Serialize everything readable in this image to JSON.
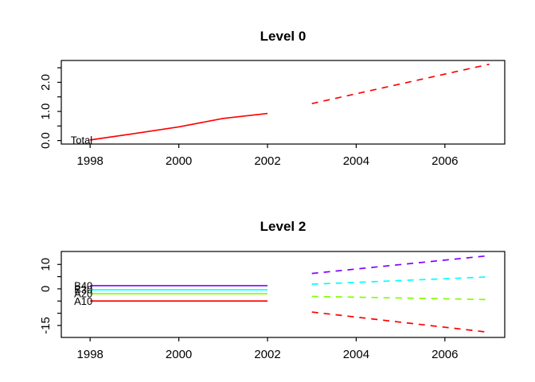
{
  "chart_data": [
    {
      "type": "line",
      "title": "Level 0",
      "xlim": [
        1997.35,
        2007.35
      ],
      "ylim": [
        -0.12,
        2.75
      ],
      "x_ticks": [
        1998,
        2000,
        2002,
        2004,
        2006
      ],
      "x_tick_labels": [
        "1998",
        "2000",
        "2002",
        "2004",
        "2006"
      ],
      "y_ticks": [
        0,
        0.5,
        1,
        1.5,
        2,
        2.5
      ],
      "y_tick_labels": {
        "0": "0.0",
        "1": "1.0",
        "2": "2.0"
      },
      "grid": false,
      "legend": "in-plot labels at series start",
      "series": [
        {
          "name": "Total",
          "label": "Total",
          "color": "#FF0000",
          "history": [
            [
              1998,
              0.02
            ],
            [
              1999,
              0.24
            ],
            [
              2000,
              0.47
            ],
            [
              2001,
              0.76
            ],
            [
              2002,
              0.93
            ]
          ],
          "forecast": [
            [
              2003,
              1.27
            ],
            [
              2007,
              2.62
            ]
          ]
        }
      ]
    },
    {
      "type": "line",
      "title": "Level 2",
      "xlim": [
        1997.35,
        2007.35
      ],
      "ylim": [
        -19.9,
        15.3
      ],
      "x_ticks": [
        1998,
        2000,
        2002,
        2004,
        2006
      ],
      "x_tick_labels": [
        "1998",
        "2000",
        "2002",
        "2004",
        "2006"
      ],
      "y_ticks": [
        -15,
        -10,
        -5,
        0,
        5,
        10
      ],
      "y_tick_labels": {
        "-15": "-15",
        "0": "0",
        "10": "10"
      },
      "grid": false,
      "legend": "in-plot labels at series start (overlapping)",
      "series": [
        {
          "name": "A10",
          "label": "A10",
          "color": "#FF0000",
          "history": [
            [
              1998,
              -5.0
            ],
            [
              2002,
              -5.0
            ]
          ],
          "forecast": [
            [
              2003,
              -9.5
            ],
            [
              2007,
              -17.8
            ]
          ]
        },
        {
          "name": "A20",
          "label": "A20",
          "color": "#80FF00",
          "history": [
            [
              1998,
              -2.0
            ],
            [
              2002,
              -2.0
            ]
          ],
          "forecast": [
            [
              2003,
              -3.1
            ],
            [
              2007,
              -4.4
            ]
          ]
        },
        {
          "name": "B30",
          "label": "B30",
          "color": "#00FFFF",
          "history": [
            [
              1998,
              -0.4
            ],
            [
              2002,
              -0.4
            ]
          ],
          "forecast": [
            [
              2003,
              1.9
            ],
            [
              2007,
              4.9
            ]
          ]
        },
        {
          "name": "B40",
          "label": "B40",
          "color": "#8000FF",
          "history": [
            [
              1998,
              1.3
            ],
            [
              2002,
              1.3
            ]
          ],
          "forecast": [
            [
              2003,
              6.3
            ],
            [
              2007,
              13.6
            ]
          ]
        }
      ]
    }
  ]
}
